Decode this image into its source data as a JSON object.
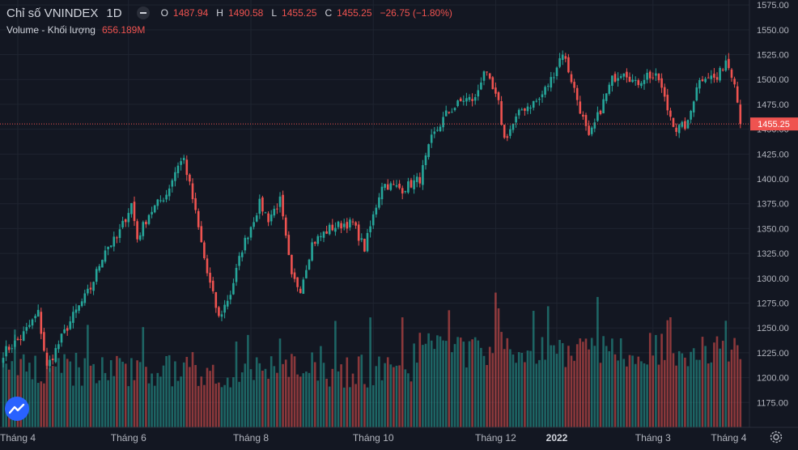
{
  "legend": {
    "symbol": "Chỉ số VNINDEX",
    "interval": "1D",
    "o_label": "O",
    "o_value": "1487.94",
    "h_label": "H",
    "h_value": "1490.58",
    "l_label": "L",
    "l_value": "1455.25",
    "c_label": "C",
    "c_value": "1455.25",
    "change": "−26.75 (−1.80%)",
    "volume_label": "Volume - Khối lượng",
    "volume_value": "656.189M"
  },
  "colors": {
    "up": "#26a69a",
    "down": "#ef5350",
    "background": "#131722",
    "grid": "#1f2430",
    "axis_text": "#b2b5be",
    "logo": "#2962ff"
  },
  "icons": {
    "eye": "eye-icon",
    "logo": "tradingview-logo-icon",
    "settings": "gear-icon"
  },
  "chart_data": {
    "type": "candlestick",
    "ylim": [
      1150,
      1580
    ],
    "y_ticks": [
      1175,
      1200,
      1225,
      1250,
      1275,
      1300,
      1325,
      1350,
      1375,
      1400,
      1425,
      1450,
      1475,
      1500,
      1525,
      1550,
      1575
    ],
    "y_tick_labels": [
      "1175.00",
      "1200.00",
      "1225.00",
      "1250.00",
      "1275.00",
      "1300.00",
      "1325.00",
      "1350.00",
      "1375.00",
      "1400.00",
      "1425.00",
      "1450.00",
      "1475.00",
      "1500.00",
      "1525.00",
      "1550.00",
      "1575.00"
    ],
    "x_labels": [
      {
        "label": "Tháng 4",
        "index": 5
      },
      {
        "label": "Tháng 6",
        "index": 43
      },
      {
        "label": "Tháng 8",
        "index": 85
      },
      {
        "label": "Tháng 10",
        "index": 127
      },
      {
        "label": "Tháng 12",
        "index": 169
      },
      {
        "label": "2022",
        "index": 190
      },
      {
        "label": "Tháng 3",
        "index": 223
      },
      {
        "label": "Tháng 4",
        "index": 249
      }
    ],
    "last_price": 1455.25,
    "last_price_label": "1455.25",
    "volume_last": "656.189M",
    "key_points": [
      [
        0,
        1225
      ],
      [
        6,
        1240
      ],
      [
        12,
        1265
      ],
      [
        15,
        1210
      ],
      [
        20,
        1240
      ],
      [
        24,
        1262
      ],
      [
        30,
        1290
      ],
      [
        35,
        1330
      ],
      [
        39,
        1340
      ],
      [
        44,
        1375
      ],
      [
        46,
        1340
      ],
      [
        50,
        1365
      ],
      [
        56,
        1385
      ],
      [
        60,
        1415
      ],
      [
        62,
        1420
      ],
      [
        65,
        1380
      ],
      [
        70,
        1305
      ],
      [
        74,
        1260
      ],
      [
        78,
        1285
      ],
      [
        82,
        1330
      ],
      [
        88,
        1375
      ],
      [
        91,
        1360
      ],
      [
        95,
        1378
      ],
      [
        99,
        1300
      ],
      [
        102,
        1290
      ],
      [
        106,
        1335
      ],
      [
        112,
        1350
      ],
      [
        117,
        1355
      ],
      [
        120,
        1355
      ],
      [
        124,
        1330
      ],
      [
        130,
        1395
      ],
      [
        137,
        1390
      ],
      [
        143,
        1400
      ],
      [
        147,
        1440
      ],
      [
        152,
        1465
      ],
      [
        158,
        1480
      ],
      [
        162,
        1480
      ],
      [
        165,
        1510
      ],
      [
        170,
        1475
      ],
      [
        172,
        1440
      ],
      [
        178,
        1470
      ],
      [
        184,
        1480
      ],
      [
        188,
        1500
      ],
      [
        192,
        1528
      ],
      [
        195,
        1500
      ],
      [
        198,
        1470
      ],
      [
        201,
        1440
      ],
      [
        205,
        1470
      ],
      [
        209,
        1500
      ],
      [
        213,
        1510
      ],
      [
        217,
        1495
      ],
      [
        221,
        1505
      ],
      [
        225,
        1500
      ],
      [
        228,
        1470
      ],
      [
        231,
        1450
      ],
      [
        235,
        1455
      ],
      [
        238,
        1495
      ],
      [
        241,
        1505
      ],
      [
        245,
        1500
      ],
      [
        248,
        1520
      ],
      [
        251,
        1500
      ],
      [
        253,
        1455.25
      ]
    ],
    "bar_count": 254
  }
}
